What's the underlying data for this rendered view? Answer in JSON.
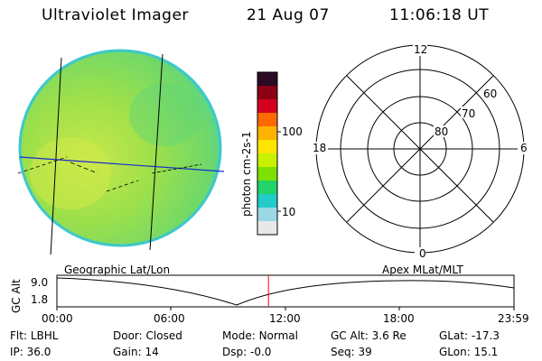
{
  "header": {
    "title": "Ultraviolet Imager",
    "date": "21 Aug 07",
    "time": "11:06:18 UT"
  },
  "colorbar": {
    "label": "photon cm-2s-1",
    "ticks": [
      "100",
      "10"
    ],
    "colors": [
      "#2a0a24",
      "#8b0015",
      "#d4001e",
      "#ff6a00",
      "#ffb300",
      "#ffe400",
      "#c8f000",
      "#7ee000",
      "#22d26a",
      "#22ccc8",
      "#9ad8e4",
      "#e8e8e8"
    ]
  },
  "polar_plot": {
    "lat_labels": [
      "80",
      "70",
      "60"
    ],
    "mlt_labels": [
      "12",
      "18",
      "6",
      "0"
    ]
  },
  "map_labels": {
    "left": "Geographic Lat/Lon",
    "right": "Apex MLat/MLT"
  },
  "altitude_plot": {
    "ylabel": "GC Alt",
    "yticks": [
      "9.0",
      "1.8"
    ],
    "xticks": [
      "00:00",
      "06:00",
      "12:00",
      "18:00",
      "23:59"
    ],
    "marker_time": "11:06",
    "marker_color": "#ff0000"
  },
  "info": {
    "filter_label": "Flt:",
    "filter_value": "LBHL",
    "ip_label": "IP:",
    "ip_value": "36.0",
    "door_label": "Door:",
    "door_value": "Closed",
    "gain_label": "Gain:",
    "gain_value": "14",
    "mode_label": "Mode:",
    "mode_value": "Normal",
    "dsp_label": "Dsp:",
    "dsp_value": "-0.0",
    "gcalt_label": "GC Alt:",
    "gcalt_value": "3.6 Re",
    "seq_label": "Seq:",
    "seq_value": "39",
    "glat_label": "GLat:",
    "glat_value": "-17.3",
    "glon_label": "GLon:",
    "glon_value": "15.1"
  }
}
